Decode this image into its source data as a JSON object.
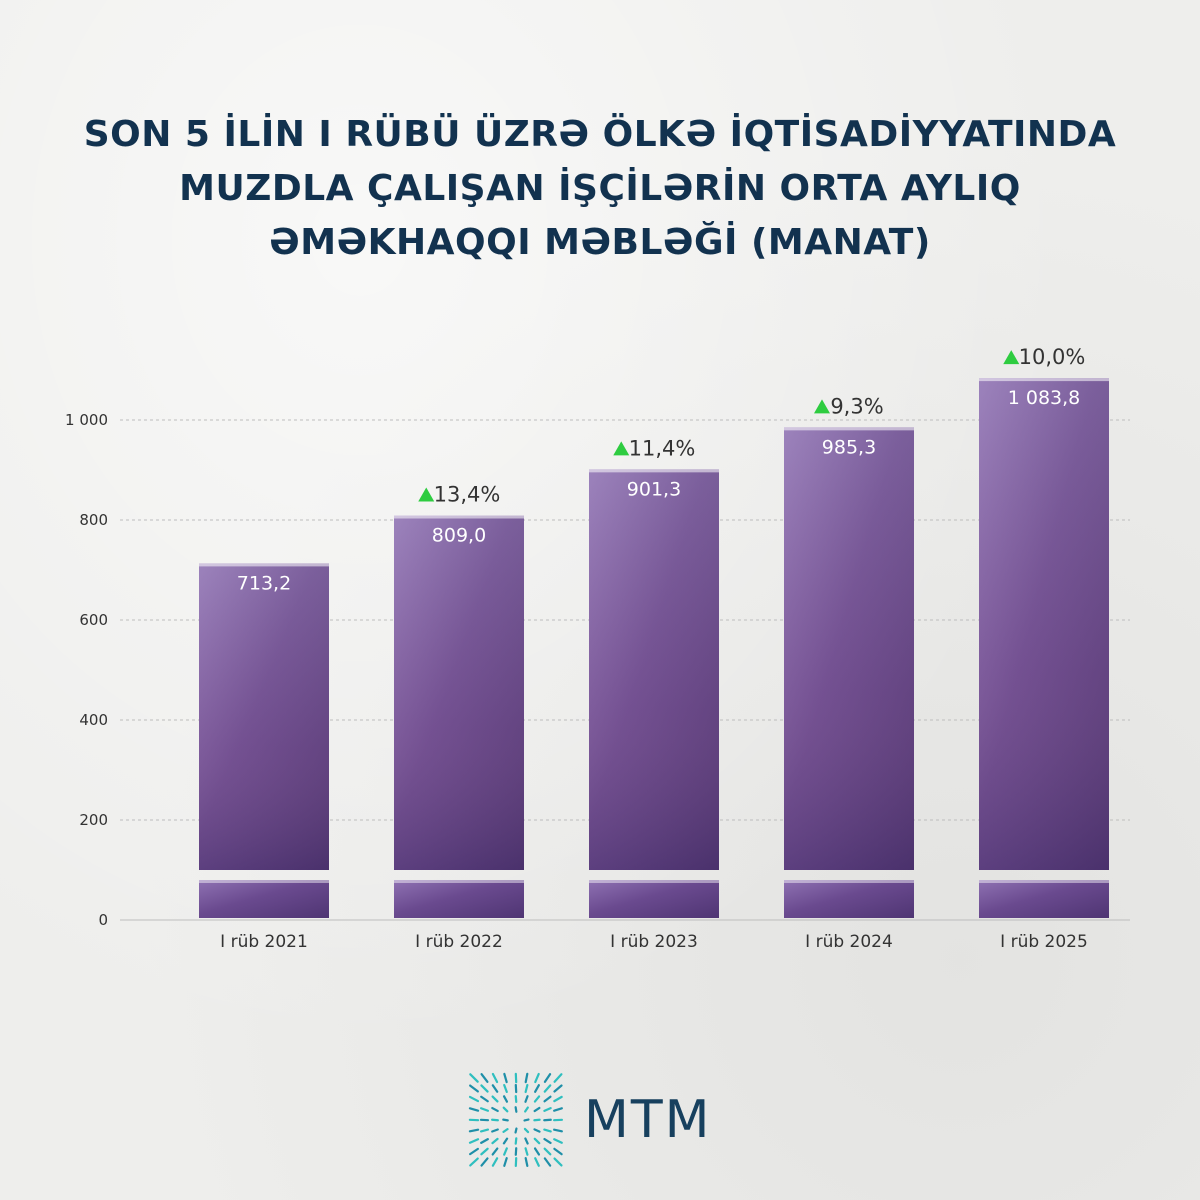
{
  "title": {
    "line1": "SON 5 İLİN I RÜBÜ ÜZRƏ ÖLKƏ İQTİSADİYYATINDA",
    "line2": "MUZDLA ÇALIŞAN İŞÇİLƏRİN ORTA AYLIQ",
    "line3": "ƏMƏKHAQQI MƏBLƏĞİ (MANAT)"
  },
  "chart_data": {
    "type": "bar",
    "categories": [
      "I rüb 2021",
      "I rüb 2022",
      "I rüb 2023",
      "I rüb 2024",
      "I rüb 2025"
    ],
    "values": [
      713.2,
      809.0,
      901.3,
      985.3,
      1083.8
    ],
    "value_labels": [
      "713,2",
      "809,0",
      "901,3",
      "985,3",
      "1 083,8"
    ],
    "growth_labels": [
      "",
      "13,4%",
      "11,4%",
      "9,3%",
      "10,0%"
    ],
    "y_ticks": [
      0,
      200,
      400,
      600,
      800,
      1000
    ],
    "y_tick_labels": [
      "0",
      "200",
      "400",
      "600",
      "800",
      "1 000"
    ],
    "ylim": [
      0,
      1100
    ],
    "axis_break": true,
    "grid": true,
    "colors": {
      "bar": "#6b4a8e",
      "bar_light": "#9a7cba",
      "up_arrow": "#2ecc40",
      "title": "#12324f"
    }
  },
  "logo": {
    "text": "MTM",
    "color": "#17405e",
    "mark_colors": [
      "#2fbfbf",
      "#1f8fa8"
    ]
  }
}
